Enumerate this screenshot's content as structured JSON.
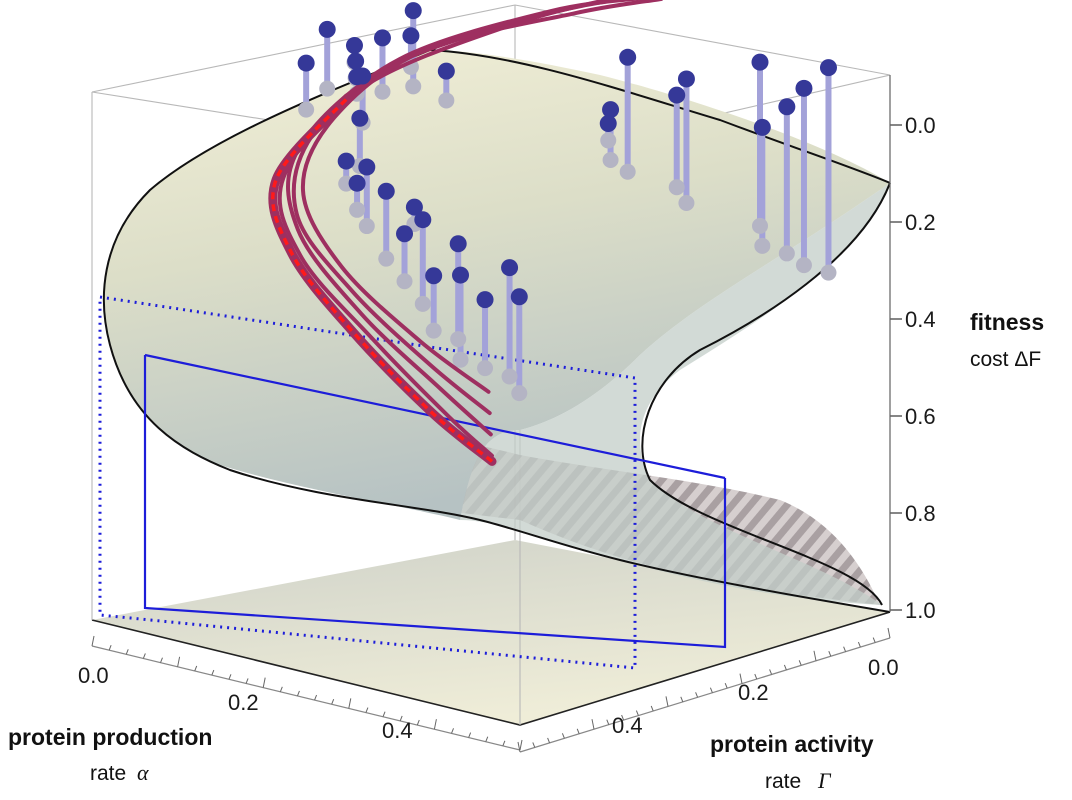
{
  "chart_data": {
    "type": "surface3d",
    "title": "",
    "axes": {
      "z": {
        "label_bold": "fitness",
        "label_rest": "cost ΔF",
        "ticks": [
          0.0,
          0.2,
          0.4,
          0.6,
          0.8,
          1.0
        ],
        "tick_labels": [
          "0.0",
          "0.2",
          "0.4",
          "0.6",
          "0.8",
          "1.0"
        ],
        "range": [
          0.0,
          1.0
        ],
        "inverted": true
      },
      "alpha": {
        "label_bold": "protein production",
        "label_rest": "rate",
        "symbol": "α",
        "ticks": [
          0.0,
          0.2,
          0.4
        ],
        "tick_labels": [
          "0.0",
          "0.2",
          "0.4"
        ],
        "range": [
          0.0,
          0.5
        ]
      },
      "gamma": {
        "label_bold": "protein activity",
        "label_rest": "rate",
        "symbol": "Γ",
        "ticks": [
          0.0,
          0.2,
          0.4
        ],
        "tick_labels": [
          "0.0",
          "0.2",
          "0.4"
        ],
        "range": [
          0.0,
          0.5
        ]
      }
    },
    "colors": {
      "surface_light": "#f0ecd3",
      "surface_dark": "#b3c1c3",
      "hatch": "#8a7d80",
      "trajectory": "#9e2f60",
      "mean_trajectory": "#ff1a1a",
      "marker": "#353898",
      "marker_shadow": "#b4b4c4",
      "stem": "#a3a2d9",
      "guide": "#1d1dd9"
    },
    "trajectories": [
      [
        [
          0.05,
          0.02,
          0.55
        ],
        [
          0.1,
          0.02,
          0.5
        ],
        [
          0.2,
          0.03,
          0.4
        ],
        [
          0.3,
          0.05,
          0.3
        ],
        [
          0.38,
          0.12,
          0.22
        ],
        [
          0.4,
          0.25,
          0.12
        ],
        [
          0.34,
          0.38,
          0.04
        ],
        [
          0.28,
          0.47,
          0.0
        ]
      ],
      [
        [
          0.06,
          0.03,
          0.52
        ],
        [
          0.12,
          0.03,
          0.46
        ],
        [
          0.22,
          0.04,
          0.37
        ],
        [
          0.32,
          0.07,
          0.27
        ],
        [
          0.39,
          0.15,
          0.19
        ],
        [
          0.4,
          0.28,
          0.1
        ],
        [
          0.33,
          0.4,
          0.03
        ],
        [
          0.27,
          0.48,
          0.0
        ]
      ],
      [
        [
          0.07,
          0.04,
          0.49
        ],
        [
          0.14,
          0.04,
          0.43
        ],
        [
          0.24,
          0.05,
          0.34
        ],
        [
          0.33,
          0.08,
          0.25
        ],
        [
          0.39,
          0.17,
          0.17
        ],
        [
          0.4,
          0.3,
          0.09
        ],
        [
          0.32,
          0.41,
          0.02
        ],
        [
          0.26,
          0.48,
          0.0
        ]
      ],
      [
        [
          0.08,
          0.05,
          0.46
        ],
        [
          0.16,
          0.05,
          0.4
        ],
        [
          0.26,
          0.06,
          0.31
        ],
        [
          0.34,
          0.1,
          0.22
        ],
        [
          0.39,
          0.2,
          0.15
        ],
        [
          0.39,
          0.32,
          0.08
        ],
        [
          0.3,
          0.42,
          0.02
        ],
        [
          0.25,
          0.48,
          0.0
        ]
      ]
    ],
    "mean_trajectory": [
      [
        0.05,
        0.02,
        0.56
      ],
      [
        0.12,
        0.02,
        0.5
      ],
      [
        0.22,
        0.03,
        0.4
      ],
      [
        0.31,
        0.05,
        0.3
      ],
      [
        0.38,
        0.11,
        0.22
      ],
      [
        0.4,
        0.23,
        0.13
      ]
    ],
    "points": [
      [
        0.02,
        0.44,
        0.02
      ],
      [
        0.04,
        0.43,
        0.06
      ],
      [
        0.06,
        0.43,
        0.1
      ],
      [
        0.08,
        0.42,
        0.14
      ],
      [
        0.1,
        0.44,
        0.04
      ],
      [
        0.16,
        0.41,
        0.08
      ],
      [
        0.18,
        0.42,
        0.12
      ],
      [
        0.22,
        0.4,
        0.06
      ],
      [
        0.24,
        0.4,
        0.16
      ],
      [
        0.26,
        0.42,
        0.2
      ],
      [
        0.07,
        0.08,
        0.3
      ],
      [
        0.09,
        0.09,
        0.26
      ],
      [
        0.11,
        0.08,
        0.32
      ],
      [
        0.13,
        0.07,
        0.28
      ],
      [
        0.15,
        0.09,
        0.24
      ],
      [
        0.17,
        0.08,
        0.3
      ],
      [
        0.2,
        0.1,
        0.22
      ],
      [
        0.23,
        0.11,
        0.26
      ],
      [
        0.26,
        0.12,
        0.2
      ],
      [
        0.3,
        0.14,
        0.18
      ],
      [
        0.32,
        0.15,
        0.22
      ],
      [
        0.35,
        0.17,
        0.2
      ],
      [
        0.36,
        0.2,
        0.14
      ],
      [
        0.4,
        0.25,
        0.1
      ],
      [
        0.42,
        0.3,
        0.06
      ],
      [
        0.41,
        0.33,
        0.02
      ],
      [
        0.44,
        0.22,
        0.08
      ],
      [
        0.45,
        0.26,
        0.04
      ],
      [
        0.43,
        0.35,
        0.08
      ],
      [
        0.38,
        0.34,
        0.12
      ],
      [
        0.4,
        0.32,
        0.36
      ],
      [
        0.45,
        0.3,
        0.14
      ],
      [
        0.46,
        0.31,
        0.12
      ],
      [
        0.47,
        0.32,
        0.1
      ]
    ]
  }
}
